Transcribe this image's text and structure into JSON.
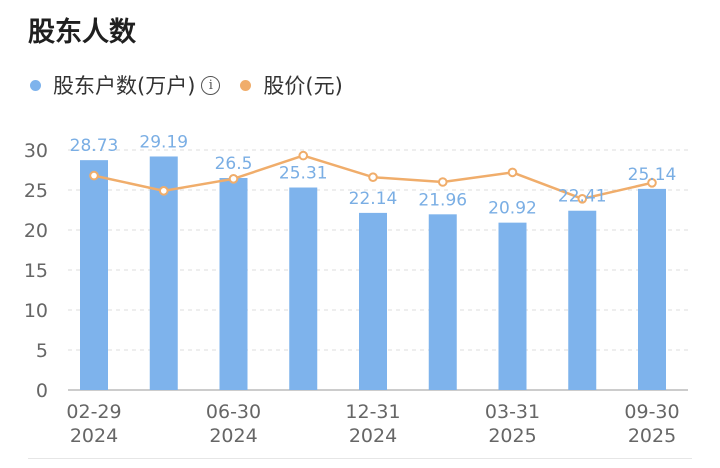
{
  "header": {
    "title": "股东人数"
  },
  "legend": {
    "bar_label": "股东户数(万户)",
    "line_label": "股价(元)",
    "info_glyph": "i"
  },
  "colors": {
    "bar": "#7eb3ec",
    "line": "#f0ad6b",
    "bar_label": "#7aaee4",
    "axis_text": "#666666",
    "grid": "#dddddd"
  },
  "chart_data": {
    "type": "bar",
    "categories": [
      "02-29\n2024",
      "",
      "06-30\n2024",
      "",
      "12-31\n2024",
      "",
      "03-31\n2025",
      "",
      "09-30\n2025"
    ],
    "series": [
      {
        "name": "股东户数(万户)",
        "type": "bar",
        "values": [
          28.73,
          29.19,
          26.5,
          25.31,
          22.14,
          21.96,
          20.92,
          22.41,
          25.14
        ],
        "data_labels": [
          "28.73",
          "29.19",
          "26.5",
          "25.31",
          "22.14",
          "21.96",
          "20.92",
          "22.41",
          "25.14"
        ]
      },
      {
        "name": "股价(元)",
        "type": "line",
        "values": [
          26.8,
          24.9,
          26.4,
          29.3,
          26.6,
          26.0,
          27.2,
          23.9,
          25.9
        ]
      }
    ],
    "ylim": [
      0,
      30
    ],
    "yticks": [
      "0",
      "5",
      "10",
      "15",
      "20",
      "25",
      "30"
    ],
    "grid": true
  }
}
